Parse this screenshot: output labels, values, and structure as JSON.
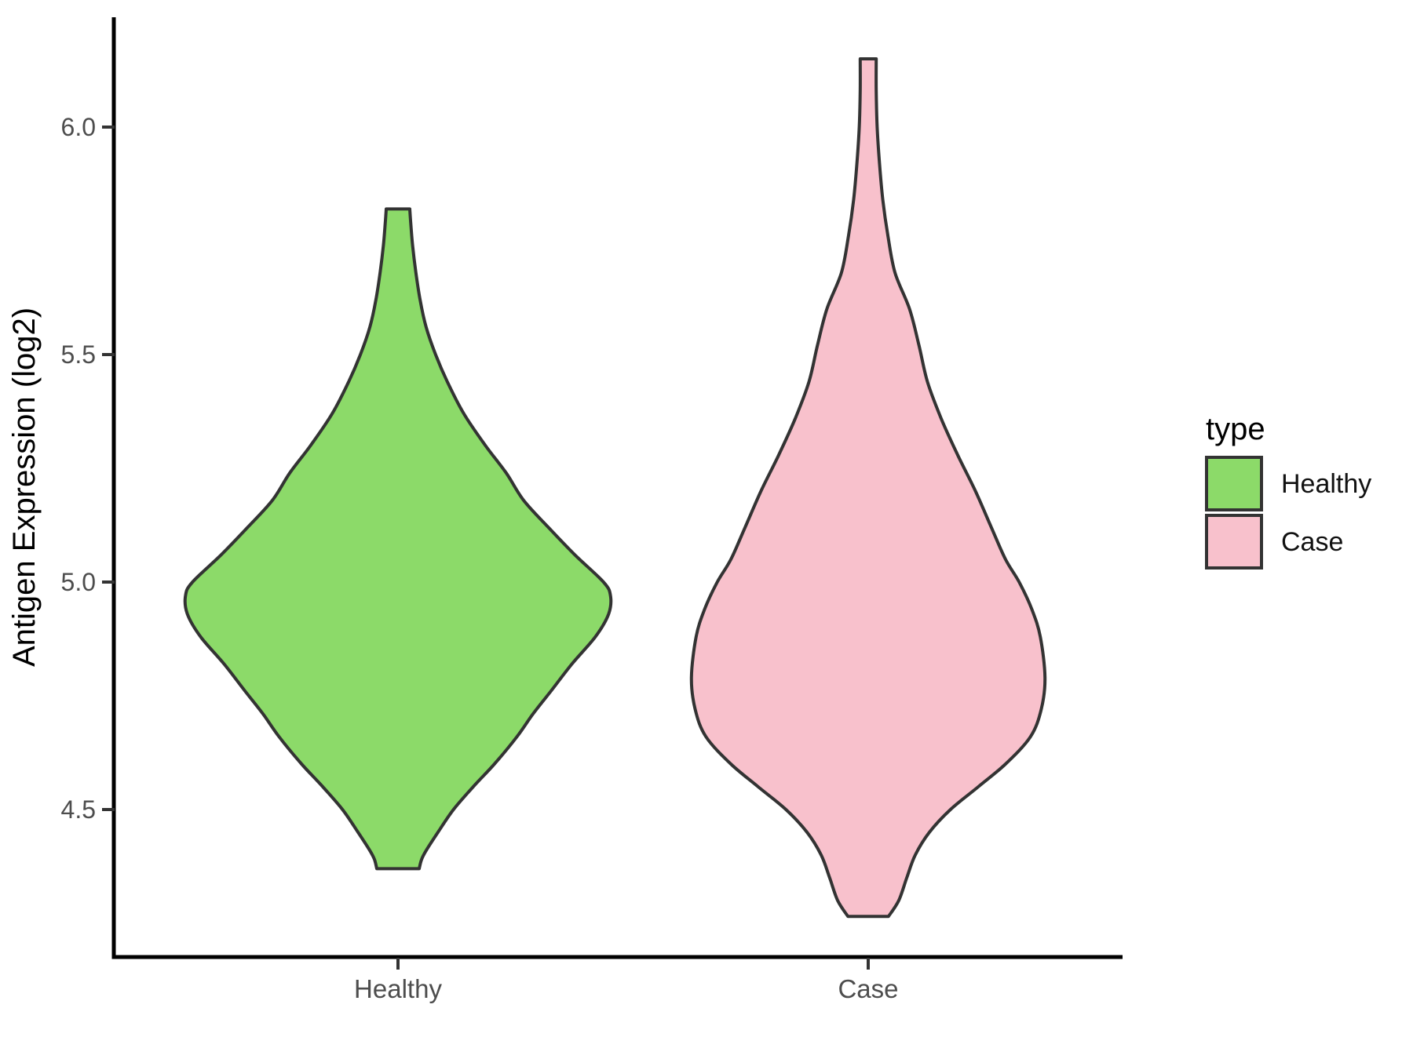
{
  "figure": {
    "background": "#FFFFFF",
    "axis_line_color": "#000000",
    "tick_color": "#333333",
    "tick_label_color": "#4D4D4D",
    "outline_color": "#333333"
  },
  "legend": {
    "title": "type",
    "items": [
      {
        "label": "Healthy",
        "color": "#8CDA69"
      },
      {
        "label": "Case",
        "color": "#F8C1CC"
      }
    ]
  },
  "chart_data": {
    "type": "violin",
    "orientation": "vertical",
    "title": "",
    "xlabel": "",
    "ylabel": "Antigen Expression (log2)",
    "categories": [
      "Healthy",
      "Case"
    ],
    "ylim": [
      4.18,
      6.24
    ],
    "grid": false,
    "legend_position": "right",
    "y_ticks": [
      {
        "label": "6.0",
        "value": 6.0
      },
      {
        "label": "5.5",
        "value": 5.5
      },
      {
        "label": "5.0",
        "value": 5.0
      },
      {
        "label": "4.5",
        "value": 4.5
      }
    ],
    "profile_note": "profile = [y_value, half_width_in_category_units]",
    "series": [
      {
        "name": "Healthy",
        "fill": "#8CDA69",
        "outline": "#333333",
        "center": 1,
        "y_min": 4.37,
        "y_max": 5.82,
        "peak_density_at": 4.97,
        "profile": [
          [
            5.82,
            0.025
          ],
          [
            5.79,
            0.027
          ],
          [
            5.74,
            0.031
          ],
          [
            5.68,
            0.038
          ],
          [
            5.62,
            0.047
          ],
          [
            5.56,
            0.06
          ],
          [
            5.5,
            0.08
          ],
          [
            5.44,
            0.105
          ],
          [
            5.37,
            0.14
          ],
          [
            5.3,
            0.186
          ],
          [
            5.24,
            0.23
          ],
          [
            5.18,
            0.267
          ],
          [
            5.12,
            0.32
          ],
          [
            5.06,
            0.376
          ],
          [
            5.0,
            0.437
          ],
          [
            4.97,
            0.452
          ],
          [
            4.93,
            0.448
          ],
          [
            4.88,
            0.42
          ],
          [
            4.82,
            0.37
          ],
          [
            4.76,
            0.325
          ],
          [
            4.71,
            0.287
          ],
          [
            4.66,
            0.253
          ],
          [
            4.6,
            0.205
          ],
          [
            4.55,
            0.16
          ],
          [
            4.5,
            0.118
          ],
          [
            4.45,
            0.085
          ],
          [
            4.41,
            0.06
          ],
          [
            4.39,
            0.05
          ],
          [
            4.37,
            0.045
          ]
        ]
      },
      {
        "name": "Case",
        "fill": "#F8C1CC",
        "outline": "#333333",
        "center": 2,
        "y_min": 4.265,
        "y_max": 6.15,
        "peak_density_at": 4.79,
        "profile": [
          [
            6.15,
            0.017
          ],
          [
            6.08,
            0.017
          ],
          [
            6.0,
            0.019
          ],
          [
            5.92,
            0.024
          ],
          [
            5.84,
            0.031
          ],
          [
            5.76,
            0.042
          ],
          [
            5.68,
            0.057
          ],
          [
            5.6,
            0.088
          ],
          [
            5.52,
            0.108
          ],
          [
            5.44,
            0.126
          ],
          [
            5.36,
            0.155
          ],
          [
            5.28,
            0.19
          ],
          [
            5.2,
            0.228
          ],
          [
            5.12,
            0.262
          ],
          [
            5.05,
            0.292
          ],
          [
            5.0,
            0.321
          ],
          [
            4.94,
            0.348
          ],
          [
            4.88,
            0.366
          ],
          [
            4.79,
            0.376
          ],
          [
            4.72,
            0.368
          ],
          [
            4.66,
            0.345
          ],
          [
            4.6,
            0.292
          ],
          [
            4.55,
            0.234
          ],
          [
            4.5,
            0.175
          ],
          [
            4.45,
            0.13
          ],
          [
            4.4,
            0.1
          ],
          [
            4.35,
            0.082
          ],
          [
            4.3,
            0.065
          ],
          [
            4.265,
            0.043
          ]
        ]
      }
    ]
  }
}
